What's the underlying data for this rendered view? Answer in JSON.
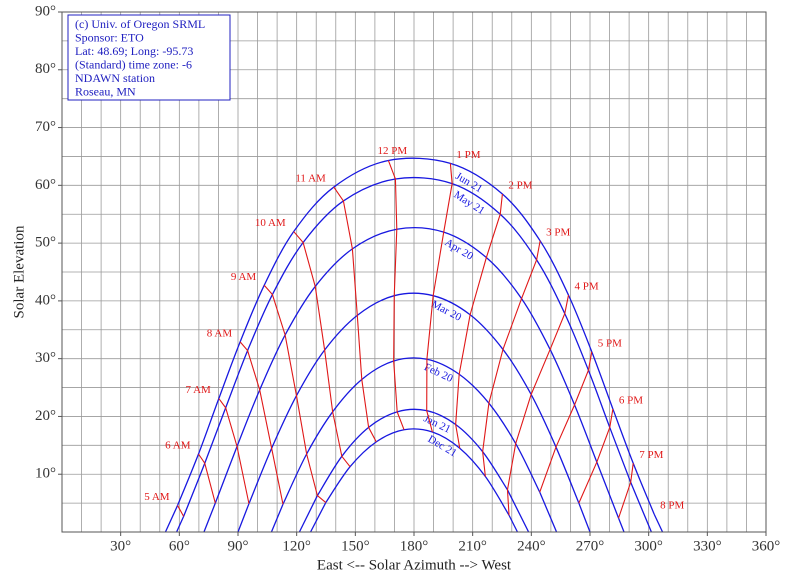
{
  "chart_data": {
    "type": "sunpath",
    "x_label": "East <-- Solar Azimuth --> West",
    "y_label": "Solar Elevation",
    "annotations": [
      "(c) Univ. of Oregon SRML",
      "Sponsor: ETO",
      "Lat: 48.69; Long: -95.73",
      "(Standard) time zone: -6",
      "NDAWN station",
      "Roseau, MN"
    ],
    "xlim": [
      0,
      360
    ],
    "ylim": [
      0,
      90
    ],
    "xticks": [
      {
        "value": 30,
        "label": "30°"
      },
      {
        "value": 60,
        "label": "60°"
      },
      {
        "value": 90,
        "label": "90°"
      },
      {
        "value": 120,
        "label": "120°"
      },
      {
        "value": 150,
        "label": "150°"
      },
      {
        "value": 180,
        "label": "180°"
      },
      {
        "value": 210,
        "label": "210°"
      },
      {
        "value": 240,
        "label": "240°"
      },
      {
        "value": 270,
        "label": "270°"
      },
      {
        "value": 300,
        "label": "300°"
      },
      {
        "value": 330,
        "label": "330°"
      },
      {
        "value": 360,
        "label": "360°"
      }
    ],
    "yticks": [
      {
        "value": 10,
        "label": "10°"
      },
      {
        "value": 20,
        "label": "20°"
      },
      {
        "value": 30,
        "label": "30°"
      },
      {
        "value": 40,
        "label": "40°"
      },
      {
        "value": 50,
        "label": "50°"
      },
      {
        "value": 60,
        "label": "60°"
      },
      {
        "value": 70,
        "label": "70°"
      },
      {
        "value": 80,
        "label": "80°"
      },
      {
        "value": 90,
        "label": "90°"
      }
    ],
    "grid": true,
    "xgrid_step": 10,
    "ygrid_step": 5,
    "hour_color": "#e01818",
    "categories": [
      "5 AM",
      "6 AM",
      "7 AM",
      "8 AM",
      "9 AM",
      "10 AM",
      "11 AM",
      "12 PM",
      "1 PM",
      "2 PM",
      "3 PM",
      "4 PM",
      "5 PM",
      "6 PM",
      "7 PM",
      "8 PM"
    ],
    "series": [
      {
        "name": "Jun 21",
        "color": "#1818e0",
        "horizon": [
          52.9,
          307.1
        ],
        "x": [
          59.1,
          69.8,
          80.2,
          91.1,
          103.4,
          118.5,
          139.0,
          166.9,
          198.6,
          225.2,
          244.5,
          259.0,
          270.9,
          281.7,
          292.1,
          302.8
        ],
        "values": [
          4.6,
          13.5,
          23.1,
          32.9,
          42.7,
          52.0,
          59.7,
          64.3,
          63.8,
          58.5,
          50.4,
          41.0,
          31.2,
          21.3,
          11.9,
          3.1
        ]
      },
      {
        "name": "May 21",
        "color": "#1818e0",
        "horizon": [
          58.6,
          301.4
        ],
        "x": [
          62.2,
          73.0,
          83.7,
          94.9,
          107.6,
          123.3,
          143.9,
          170.5,
          199.5,
          224.1,
          242.7,
          257.1,
          269.2,
          280.1,
          290.8,
          null
        ],
        "values": [
          2.7,
          11.9,
          21.5,
          31.4,
          41.1,
          50.1,
          57.3,
          61.1,
          60.3,
          55.0,
          47.1,
          37.8,
          28.0,
          18.1,
          8.6,
          null
        ]
      },
      {
        "name": "Apr 20",
        "color": "#1818e0",
        "horizon": [
          72.6,
          287.4
        ],
        "x": [
          null,
          78.4,
          89.5,
          101.1,
          114.1,
          129.5,
          148.5,
          171.2,
          195.2,
          217.0,
          235.0,
          249.6,
          262.1,
          273.5,
          284.6,
          null
        ],
        "values": [
          null,
          5.0,
          14.8,
          24.6,
          34.1,
          42.5,
          49.0,
          52.4,
          51.9,
          47.5,
          40.4,
          31.6,
          22.0,
          12.1,
          2.4,
          null
        ]
      },
      {
        "name": "Mar 20",
        "color": "#1818e0",
        "horizon": [
          90,
          270
        ],
        "x": [
          null,
          null,
          95.6,
          107.2,
          119.9,
          134.3,
          151.0,
          169.9,
          189.8,
          208.7,
          225.5,
          239.9,
          252.6,
          264.3,
          null,
          null
        ],
        "values": [
          null,
          null,
          4.9,
          14.5,
          23.6,
          31.5,
          37.5,
          40.9,
          40.9,
          37.6,
          31.6,
          23.8,
          14.7,
          5.0,
          null,
          null
        ]
      },
      {
        "name": "Feb 20",
        "color": "#1818e0",
        "horizon": [
          107.1,
          252.9
        ],
        "x": [
          null,
          null,
          null,
          113.0,
          125.1,
          138.4,
          153.3,
          169.6,
          186.6,
          203.1,
          218.3,
          232.0,
          244.3,
          null,
          null,
          null
        ],
        "values": [
          null,
          null,
          null,
          4.8,
          13.5,
          20.8,
          26.4,
          29.6,
          29.9,
          27.3,
          22.3,
          15.3,
          6.9,
          null,
          null,
          null
        ]
      },
      {
        "name": "Jan 21",
        "color": "#1818e0",
        "horizon": [
          121.4,
          238.6
        ],
        "x": [
          null,
          null,
          null,
          null,
          130.6,
          143.1,
          156.8,
          171.4,
          186.5,
          201.3,
          215.1,
          227.8,
          null,
          null,
          null,
          null
        ],
        "values": [
          null,
          null,
          null,
          null,
          6.3,
          13.1,
          18.1,
          20.8,
          21.0,
          18.6,
          13.9,
          7.3,
          null,
          null,
          null,
          null
        ]
      },
      {
        "name": "Dec 21",
        "color": "#1818e0",
        "horizon": [
          127.1,
          232.9
        ],
        "x": [
          null,
          null,
          null,
          null,
          134.9,
          147.3,
          160.7,
          174.9,
          189.4,
          203.4,
          216.5,
          228.6,
          null,
          null,
          null,
          null
        ],
        "values": [
          null,
          null,
          null,
          null,
          5.1,
          11.3,
          15.6,
          17.7,
          17.3,
          14.5,
          9.6,
          2.9,
          null,
          null,
          null,
          null
        ]
      }
    ]
  }
}
